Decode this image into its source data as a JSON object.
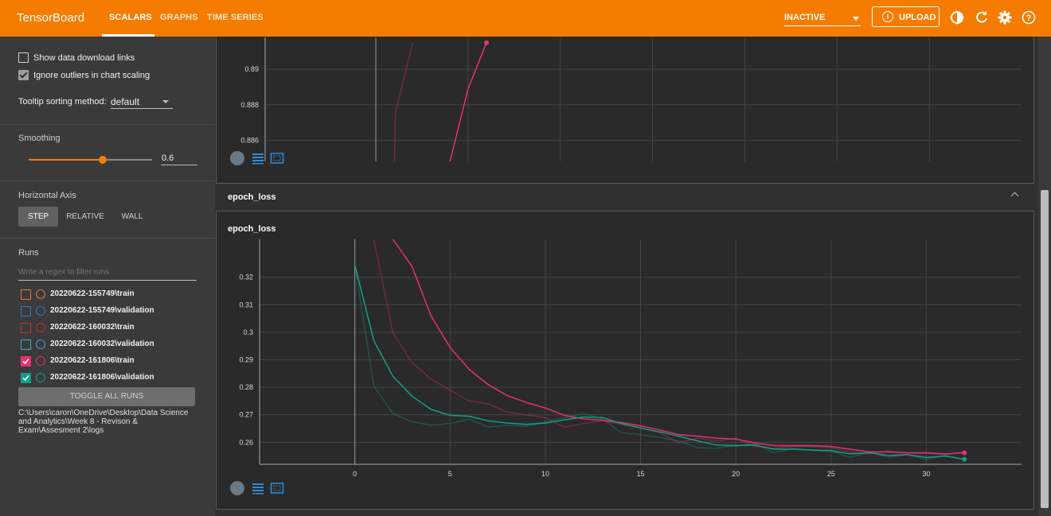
{
  "app": {
    "brand": "TensorBoard",
    "tabs": [
      {
        "label": "SCALARS",
        "active": true
      },
      {
        "label": "GRAPHS",
        "active": false
      },
      {
        "label": "TIME SERIES",
        "active": false
      }
    ],
    "status_select": "INACTIVE",
    "upload_label": "UPLOAD",
    "icons": [
      "theme-icon",
      "refresh-icon",
      "settings-icon",
      "help-icon"
    ],
    "accent": "#f57c00"
  },
  "sidebar": {
    "show_download_links": {
      "label": "Show data download links",
      "checked": false
    },
    "ignore_outliers": {
      "label": "Ignore outliers in chart scaling",
      "checked": true
    },
    "tooltip_sorting": {
      "label": "Tooltip sorting method:",
      "value": "default"
    },
    "smoothing": {
      "label": "Smoothing",
      "value": "0.6",
      "fraction": 0.6
    },
    "horizontal_axis": {
      "label": "Horizontal Axis",
      "options": [
        "STEP",
        "RELATIVE",
        "WALL"
      ],
      "selected": "STEP"
    },
    "runs": {
      "label": "Runs",
      "filter_placeholder": "Write a regex to filter runs",
      "items": [
        {
          "name": "20220622-155749\\train",
          "color": "#e07a3e",
          "checked": false
        },
        {
          "name": "20220622-155749\\validation",
          "color": "#2e7dbf",
          "checked": false
        },
        {
          "name": "20220622-160032\\train",
          "color": "#b23a2e",
          "checked": false
        },
        {
          "name": "20220622-160032\\validation",
          "color": "#3aa6d6",
          "checked": false
        },
        {
          "name": "20220622-161806\\train",
          "color": "#e8306e",
          "checked": true
        },
        {
          "name": "20220622-161806\\validation",
          "color": "#13a085",
          "checked": true
        }
      ],
      "toggle_all": "TOGGLE ALL RUNS",
      "logdir": "C:\\Users\\caron\\OneDrive\\Desktop\\Data Science and Analytics\\Week 8 - Revison & Exam\\Assesment 2\\logs"
    }
  },
  "main": {
    "section_title": "epoch_loss"
  },
  "chart_data": [
    {
      "type": "line",
      "title": "",
      "xlim": [
        -6,
        35
      ],
      "ylim": [
        0.884,
        0.8918
      ],
      "x_ticks": [
        0,
        5,
        10,
        15,
        20,
        25,
        30
      ],
      "y_ticks": [
        0.886,
        0.888,
        0.89
      ],
      "grid": true,
      "series": [
        {
          "color": "#e8306e",
          "x": [
            3.9,
            5,
            6
          ],
          "y": [
            0.8843,
            0.8889,
            0.8915
          ]
        },
        {
          "color": "#e8306e",
          "faded": true,
          "x": [
            1,
            1.05,
            2
          ],
          "y": [
            0.884,
            0.8875,
            0.8915
          ]
        }
      ]
    },
    {
      "type": "line",
      "title": "epoch_loss",
      "xlim": [
        -5,
        35
      ],
      "ylim": [
        0.252,
        0.3338
      ],
      "x_ticks": [
        0,
        5,
        10,
        15,
        20,
        25,
        30
      ],
      "y_ticks": [
        0.26,
        0.27,
        0.28,
        0.29,
        0.3,
        0.31,
        0.32
      ],
      "grid": true,
      "series": [
        {
          "color": "#e8306e",
          "x": [
            2,
            3,
            4,
            5,
            6,
            7,
            8,
            9,
            10,
            11,
            12,
            13,
            14,
            15,
            16,
            17,
            18,
            19,
            20,
            21,
            22,
            23,
            24,
            25,
            26,
            27,
            28,
            29,
            30,
            31,
            32
          ],
          "y": [
            0.3338,
            0.324,
            0.306,
            0.2945,
            0.2865,
            0.281,
            0.277,
            0.2745,
            0.2725,
            0.2698,
            0.2685,
            0.268,
            0.2672,
            0.266,
            0.2645,
            0.2628,
            0.2622,
            0.2615,
            0.2612,
            0.2598,
            0.2588,
            0.2588,
            0.2588,
            0.2585,
            0.2575,
            0.2565,
            0.2565,
            0.2562,
            0.2562,
            0.2558,
            0.2562
          ]
        },
        {
          "color": "#13a085",
          "x": [
            0,
            1,
            2,
            3,
            4,
            5,
            6,
            7,
            8,
            9,
            10,
            11,
            12,
            13,
            14,
            15,
            16,
            17,
            18,
            19,
            20,
            21,
            22,
            23,
            24,
            25,
            26,
            27,
            28,
            29,
            30,
            31,
            32
          ],
          "y": [
            0.3245,
            0.297,
            0.284,
            0.2768,
            0.272,
            0.2698,
            0.2695,
            0.2678,
            0.267,
            0.2665,
            0.267,
            0.2682,
            0.2692,
            0.269,
            0.2668,
            0.2652,
            0.2638,
            0.2622,
            0.2605,
            0.259,
            0.2588,
            0.259,
            0.2575,
            0.2575,
            0.2572,
            0.257,
            0.2558,
            0.2562,
            0.2552,
            0.2555,
            0.2545,
            0.255,
            0.2538
          ]
        },
        {
          "color": "#e8306e",
          "faded": true,
          "x": [
            1,
            2,
            3,
            4,
            5,
            6,
            7,
            8,
            9,
            10,
            11,
            12,
            13,
            14,
            15,
            16,
            17,
            18,
            19,
            20,
            21,
            22,
            23,
            24,
            25,
            26,
            27,
            28,
            29,
            30,
            31,
            32
          ],
          "y": [
            0.3338,
            0.2998,
            0.289,
            0.283,
            0.279,
            0.275,
            0.274,
            0.271,
            0.27,
            0.269,
            0.2655,
            0.2668,
            0.2678,
            0.2665,
            0.2652,
            0.2635,
            0.2598,
            0.2615,
            0.2605,
            0.2615,
            0.2585,
            0.2578,
            0.2585,
            0.2585,
            0.258,
            0.2565,
            0.2558,
            0.2568,
            0.256,
            0.256,
            0.2555,
            0.2565
          ]
        },
        {
          "color": "#13a085",
          "faded": true,
          "x": [
            0,
            1,
            2,
            3,
            4,
            5,
            6,
            7,
            8,
            9,
            10,
            11,
            12,
            13,
            14,
            15,
            16,
            17,
            18,
            19,
            20,
            21,
            22,
            23,
            24,
            25,
            26,
            27,
            28,
            29,
            30,
            31,
            32
          ],
          "y": [
            0.3245,
            0.2805,
            0.2705,
            0.2675,
            0.2662,
            0.2668,
            0.2685,
            0.2655,
            0.2662,
            0.2658,
            0.2675,
            0.269,
            0.2705,
            0.2685,
            0.2635,
            0.2628,
            0.2618,
            0.2605,
            0.258,
            0.2578,
            0.2588,
            0.2595,
            0.2562,
            0.2578,
            0.257,
            0.2568,
            0.2545,
            0.2565,
            0.2545,
            0.2555,
            0.2538,
            0.2552,
            0.2538
          ]
        }
      ]
    }
  ]
}
